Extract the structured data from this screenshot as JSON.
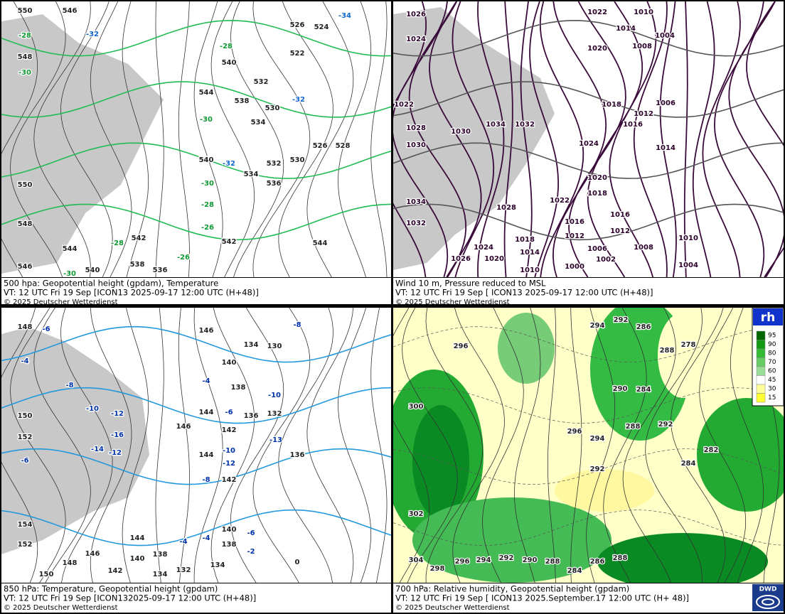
{
  "panels": [
    {
      "caption": [
        "500 hpa: Geopotential height (gpdam), Temperature",
        "VT: 12 UTC Fri  19 Sep [ICON13 2025-09-17 12:00 UTC  (H+48)]",
        "© 2025 Deutscher Wetterdienst"
      ],
      "labels": [
        "550",
        "546",
        "-28",
        "548",
        "-30",
        "-32",
        "544",
        "540",
        "538",
        "532",
        "530",
        "534",
        "526",
        "524",
        "522",
        "-32",
        "526",
        "528",
        "530",
        "532",
        "534",
        "536",
        "-30",
        "-28",
        "-26",
        "542",
        "544",
        "542",
        "-28",
        "538",
        "536",
        "540",
        "544",
        "548",
        "546",
        "-30",
        "550",
        "-34",
        "-28",
        "-32",
        "540",
        "-26",
        "-30"
      ]
    },
    {
      "caption": [
        "Wind 10 m, Pressure reduced to MSL",
        "VT: 12 UTC Fri  19 Sep [ ICON13 2025-09-17 12:00 UTC  (H+48)]",
        "© 2025 Deutscher Wetterdienst"
      ],
      "labels": [
        "1026",
        "1022",
        "1010",
        "1014",
        "1004",
        "1008",
        "1020",
        "1024",
        "1022",
        "1028",
        "1030",
        "1034",
        "1032",
        "1030",
        "1018",
        "1012",
        "1016",
        "1006",
        "1014",
        "1024",
        "1020",
        "1018",
        "1022",
        "1016",
        "1028",
        "1034",
        "1032",
        "1016",
        "1012",
        "1012",
        "1010",
        "1008",
        "1006",
        "1002",
        "1000",
        "1004",
        "1018",
        "1014",
        "1024",
        "1020",
        "1026",
        "1010"
      ]
    },
    {
      "caption": [
        "850 hPa:  Temperature, Geopotential height (gpdam)",
        "VT: 12 UTC Fri  19 Sep [ICON132025-09-17 12:00 UTC  (H+48)]",
        "© 2025 Deutscher Wetterdienst"
      ],
      "labels": [
        "148",
        "-6",
        "-4",
        "-8",
        "-10",
        "-12",
        "150",
        "152",
        "-14",
        "-16",
        "-12",
        "-6",
        "154",
        "152",
        "150",
        "148",
        "146",
        "144",
        "140",
        "142",
        "138",
        "134",
        "132",
        "134",
        "140",
        "138",
        "-2",
        "-6",
        "0",
        "-4",
        "-4",
        "146",
        "140",
        "138",
        "136",
        "134",
        "130",
        "132",
        "-8",
        "-10",
        "-13",
        "136",
        "-10",
        "-12",
        "142",
        "146",
        "144",
        "142",
        "144",
        "-6",
        "-4",
        "-8"
      ]
    },
    {
      "caption": [
        "700 hPa:  Relative humidity, Geopotential height (gpdam)",
        "VT: 12 UTC Fri  19 Sep [ ICON13  2025.September.17 12:00 UTC  (H+ 48)]",
        "© 2025 Deutscher Wetterdienst"
      ],
      "labels": [
        "292",
        "286",
        "288",
        "278",
        "294",
        "296",
        "300",
        "302",
        "304",
        "298",
        "296",
        "294",
        "292",
        "290",
        "288",
        "286",
        "284",
        "288",
        "290",
        "284",
        "288",
        "292",
        "296",
        "294",
        "292",
        "282",
        "284"
      ]
    }
  ],
  "legend": {
    "title": "rh",
    "levels": [
      "95",
      "90",
      "80",
      "70",
      "60",
      "45",
      "30",
      "15"
    ]
  },
  "logo": "DWD"
}
